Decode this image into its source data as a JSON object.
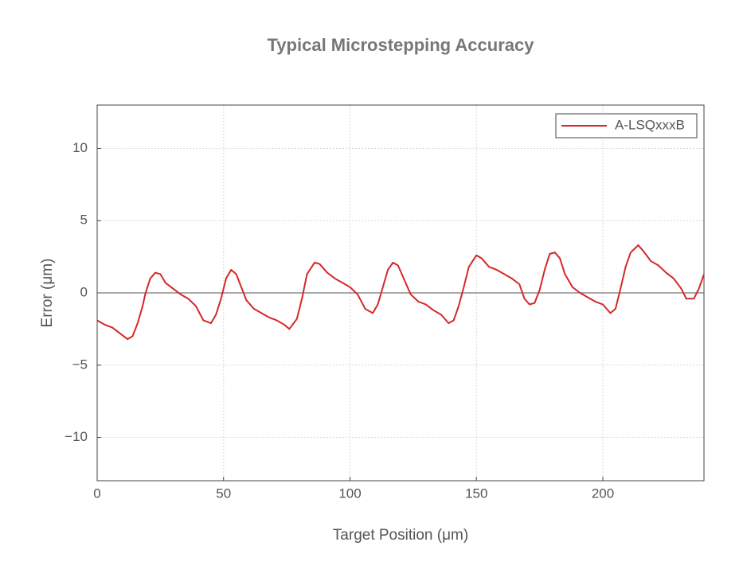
{
  "chart_data": {
    "type": "line",
    "title": "Typical Microstepping Accuracy",
    "x_label": "Target Position (μm)",
    "y_label": "Error (μm)",
    "xlim": [
      0,
      240
    ],
    "ylim": [
      -13,
      13
    ],
    "xticks": [
      0,
      50,
      100,
      150,
      200
    ],
    "yticks": [
      {
        "value": -10,
        "label": "−10"
      },
      {
        "value": -5,
        "label": "−5"
      },
      0,
      5,
      10
    ],
    "grid": true,
    "legend": "upper right",
    "x": [
      0,
      3,
      6,
      9,
      12,
      14,
      16,
      18,
      19,
      21,
      23,
      25,
      27,
      30,
      33,
      36,
      39,
      42,
      45,
      47,
      49,
      51,
      53,
      55,
      57,
      59,
      62,
      65,
      68,
      71,
      74,
      76,
      79,
      81,
      83,
      86,
      88,
      91,
      94,
      97,
      100,
      103,
      106,
      109,
      111,
      113,
      115,
      117,
      119,
      121,
      124,
      127,
      130,
      133,
      136,
      139,
      141,
      143,
      145,
      147,
      150,
      152,
      155,
      158,
      161,
      164,
      167,
      169,
      171,
      173,
      175,
      177,
      179,
      181,
      183,
      185,
      188,
      191,
      194,
      197,
      200,
      203,
      205,
      207,
      209,
      211,
      214,
      216,
      219,
      222,
      225,
      228,
      231,
      233,
      236,
      238,
      240
    ],
    "series": [
      {
        "name": "A-LSQxxxB",
        "color": "#d62728",
        "values": [
          -1.9,
          -2.2,
          -2.4,
          -2.8,
          -3.2,
          -3.0,
          -2.1,
          -0.9,
          -0.1,
          1.0,
          1.4,
          1.3,
          0.7,
          0.3,
          -0.1,
          -0.4,
          -0.9,
          -1.9,
          -2.1,
          -1.5,
          -0.4,
          1.0,
          1.6,
          1.3,
          0.4,
          -0.5,
          -1.1,
          -1.4,
          -1.7,
          -1.9,
          -2.2,
          -2.5,
          -1.8,
          -0.4,
          1.3,
          2.1,
          2.0,
          1.4,
          1.0,
          0.7,
          0.4,
          -0.1,
          -1.1,
          -1.4,
          -0.8,
          0.4,
          1.6,
          2.1,
          1.9,
          1.1,
          -0.1,
          -0.6,
          -0.8,
          -1.2,
          -1.5,
          -2.1,
          -1.9,
          -0.9,
          0.4,
          1.8,
          2.6,
          2.4,
          1.8,
          1.6,
          1.3,
          1.0,
          0.6,
          -0.4,
          -0.8,
          -0.7,
          0.2,
          1.6,
          2.7,
          2.8,
          2.4,
          1.3,
          0.4,
          0,
          -0.3,
          -0.6,
          -0.8,
          -1.4,
          -1.1,
          0.3,
          1.8,
          2.8,
          3.3,
          2.9,
          2.2,
          1.9,
          1.4,
          1.0,
          0.3,
          -0.4,
          -0.4,
          0.3,
          1.3
        ]
      }
    ]
  }
}
